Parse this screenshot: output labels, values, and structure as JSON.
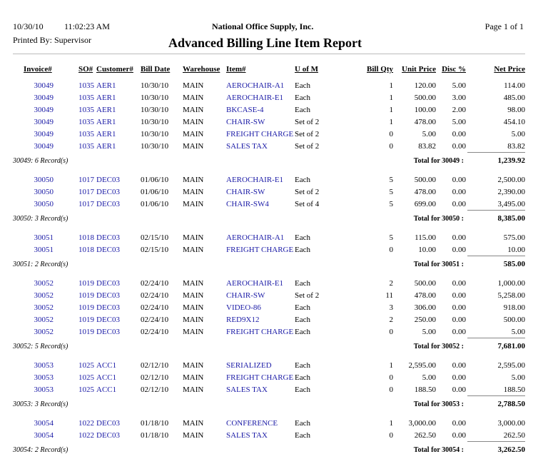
{
  "header": {
    "date": "10/30/10",
    "time": "11:02:23 AM",
    "company": "National Office Supply, Inc.",
    "page": "Page 1 of 1",
    "printed_by": "Printed By: Supervisor",
    "title": "Advanced Billing Line Item Report"
  },
  "columns": [
    "Invoice#",
    "SO#",
    "Customer#",
    "Bill Date",
    "Warehouse",
    "Item#",
    "U of M",
    "Bill Qty",
    "Unit Price",
    "Disc %",
    "Net Price"
  ],
  "groups": [
    {
      "rows": [
        [
          "30049",
          "1035",
          "AER1",
          "10/30/10",
          "MAIN",
          "AEROCHAIR-A1",
          "Each",
          "1",
          "120.00",
          "5.00",
          "114.00"
        ],
        [
          "30049",
          "1035",
          "AER1",
          "10/30/10",
          "MAIN",
          "AEROCHAIR-E1",
          "Each",
          "1",
          "500.00",
          "3.00",
          "485.00"
        ],
        [
          "30049",
          "1035",
          "AER1",
          "10/30/10",
          "MAIN",
          "BKCASE-4",
          "Each",
          "1",
          "100.00",
          "2.00",
          "98.00"
        ],
        [
          "30049",
          "1035",
          "AER1",
          "10/30/10",
          "MAIN",
          "CHAIR-SW",
          "Set of 2",
          "1",
          "478.00",
          "5.00",
          "454.10"
        ],
        [
          "30049",
          "1035",
          "AER1",
          "10/30/10",
          "MAIN",
          "FREIGHT CHARGE",
          "Set of 2",
          "0",
          "5.00",
          "0.00",
          "5.00"
        ],
        [
          "30049",
          "1035",
          "AER1",
          "10/30/10",
          "MAIN",
          "SALES TAX",
          "Set of 2",
          "0",
          "83.82",
          "0.00",
          "83.82"
        ]
      ],
      "summary": "30049: 6 Record(s)",
      "total_label": "Total for 30049 :",
      "total": "1,239.92"
    },
    {
      "rows": [
        [
          "30050",
          "1017",
          "DEC03",
          "01/06/10",
          "MAIN",
          "AEROCHAIR-E1",
          "Each",
          "5",
          "500.00",
          "0.00",
          "2,500.00"
        ],
        [
          "30050",
          "1017",
          "DEC03",
          "01/06/10",
          "MAIN",
          "CHAIR-SW",
          "Set of 2",
          "5",
          "478.00",
          "0.00",
          "2,390.00"
        ],
        [
          "30050",
          "1017",
          "DEC03",
          "01/06/10",
          "MAIN",
          "CHAIR-SW4",
          "Set of 4",
          "5",
          "699.00",
          "0.00",
          "3,495.00"
        ]
      ],
      "summary": "30050: 3 Record(s)",
      "total_label": "Total for 30050 :",
      "total": "8,385.00"
    },
    {
      "rows": [
        [
          "30051",
          "1018",
          "DEC03",
          "02/15/10",
          "MAIN",
          "AEROCHAIR-A1",
          "Each",
          "5",
          "115.00",
          "0.00",
          "575.00"
        ],
        [
          "30051",
          "1018",
          "DEC03",
          "02/15/10",
          "MAIN",
          "FREIGHT CHARGE",
          "Each",
          "0",
          "10.00",
          "0.00",
          "10.00"
        ]
      ],
      "summary": "30051: 2 Record(s)",
      "total_label": "Total for 30051 :",
      "total": "585.00"
    },
    {
      "rows": [
        [
          "30052",
          "1019",
          "DEC03",
          "02/24/10",
          "MAIN",
          "AEROCHAIR-E1",
          "Each",
          "2",
          "500.00",
          "0.00",
          "1,000.00"
        ],
        [
          "30052",
          "1019",
          "DEC03",
          "02/24/10",
          "MAIN",
          "CHAIR-SW",
          "Set of 2",
          "11",
          "478.00",
          "0.00",
          "5,258.00"
        ],
        [
          "30052",
          "1019",
          "DEC03",
          "02/24/10",
          "MAIN",
          "VIDEO-86",
          "Each",
          "3",
          "306.00",
          "0.00",
          "918.00"
        ],
        [
          "30052",
          "1019",
          "DEC03",
          "02/24/10",
          "MAIN",
          "RED9X12",
          "Each",
          "2",
          "250.00",
          "0.00",
          "500.00"
        ],
        [
          "30052",
          "1019",
          "DEC03",
          "02/24/10",
          "MAIN",
          "FREIGHT CHARGE",
          "Each",
          "0",
          "5.00",
          "0.00",
          "5.00"
        ]
      ],
      "summary": "30052: 5 Record(s)",
      "total_label": "Total for 30052 :",
      "total": "7,681.00"
    },
    {
      "rows": [
        [
          "30053",
          "1025",
          "ACC1",
          "02/12/10",
          "MAIN",
          "SERIALIZED",
          "Each",
          "1",
          "2,595.00",
          "0.00",
          "2,595.00"
        ],
        [
          "30053",
          "1025",
          "ACC1",
          "02/12/10",
          "MAIN",
          "FREIGHT CHARGE",
          "Each",
          "0",
          "5.00",
          "0.00",
          "5.00"
        ],
        [
          "30053",
          "1025",
          "ACC1",
          "02/12/10",
          "MAIN",
          "SALES TAX",
          "Each",
          "0",
          "188.50",
          "0.00",
          "188.50"
        ]
      ],
      "summary": "30053: 3 Record(s)",
      "total_label": "Total for 30053 :",
      "total": "2,788.50"
    },
    {
      "rows": [
        [
          "30054",
          "1022",
          "DEC03",
          "01/18/10",
          "MAIN",
          "CONFERENCE",
          "Each",
          "1",
          "3,000.00",
          "0.00",
          "3,000.00"
        ],
        [
          "30054",
          "1022",
          "DEC03",
          "01/18/10",
          "MAIN",
          "SALES TAX",
          "Each",
          "0",
          "262.50",
          "0.00",
          "262.50"
        ]
      ],
      "summary": "30054: 2 Record(s)",
      "total_label": "Total for 30054 :",
      "total": "3,262.50"
    }
  ]
}
